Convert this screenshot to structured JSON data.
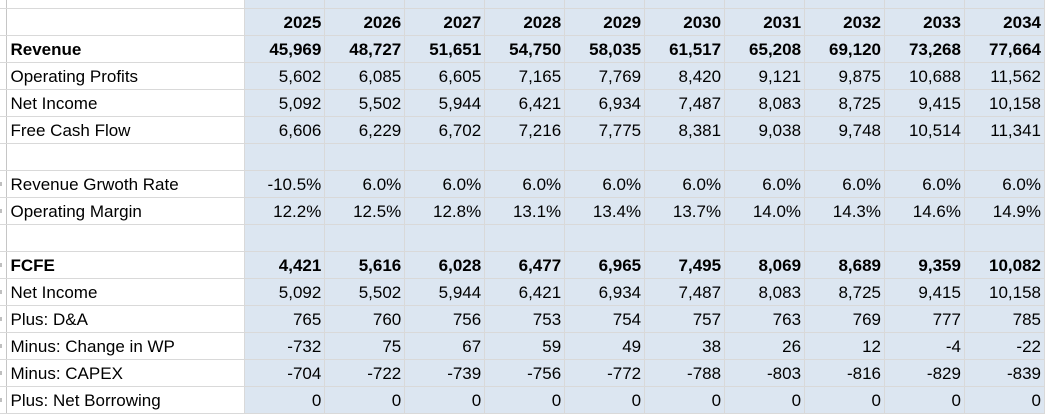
{
  "sheet": {
    "years": [
      "2025",
      "2026",
      "2027",
      "2028",
      "2029",
      "2030",
      "2031",
      "2032",
      "2033",
      "2034"
    ],
    "rows": [
      {
        "label": "",
        "bold": false,
        "values": [],
        "header": true
      },
      {
        "label": "Revenue",
        "bold": true,
        "values": [
          "45,969",
          "48,727",
          "51,651",
          "54,750",
          "58,035",
          "61,517",
          "65,208",
          "69,120",
          "73,268",
          "77,664"
        ]
      },
      {
        "label": "Operating Profits",
        "bold": false,
        "values": [
          "5,602",
          "6,085",
          "6,605",
          "7,165",
          "7,769",
          "8,420",
          "9,121",
          "9,875",
          "10,688",
          "11,562"
        ]
      },
      {
        "label": "Net Income",
        "bold": false,
        "values": [
          "5,092",
          "5,502",
          "5,944",
          "6,421",
          "6,934",
          "7,487",
          "8,083",
          "8,725",
          "9,415",
          "10,158"
        ]
      },
      {
        "label": "Free Cash Flow",
        "bold": false,
        "values": [
          "6,606",
          "6,229",
          "6,702",
          "7,216",
          "7,775",
          "8,381",
          "9,038",
          "9,748",
          "10,514",
          "11,341"
        ]
      },
      {
        "label": "",
        "bold": false,
        "values": []
      },
      {
        "label": "Revenue Grwoth Rate",
        "bold": false,
        "values": [
          "-10.5%",
          "6.0%",
          "6.0%",
          "6.0%",
          "6.0%",
          "6.0%",
          "6.0%",
          "6.0%",
          "6.0%",
          "6.0%"
        ]
      },
      {
        "label": "Operating Margin",
        "bold": false,
        "values": [
          "12.2%",
          "12.5%",
          "12.8%",
          "13.1%",
          "13.4%",
          "13.7%",
          "14.0%",
          "14.3%",
          "14.6%",
          "14.9%"
        ]
      },
      {
        "label": "",
        "bold": false,
        "values": []
      },
      {
        "label": "FCFE",
        "bold": true,
        "values": [
          "4,421",
          "5,616",
          "6,028",
          "6,477",
          "6,965",
          "7,495",
          "8,069",
          "8,689",
          "9,359",
          "10,082"
        ]
      },
      {
        "label": "Net Income",
        "bold": false,
        "values": [
          "5,092",
          "5,502",
          "5,944",
          "6,421",
          "6,934",
          "7,487",
          "8,083",
          "8,725",
          "9,415",
          "10,158"
        ]
      },
      {
        "label": "Plus: D&A",
        "bold": false,
        "values": [
          "765",
          "760",
          "756",
          "753",
          "754",
          "757",
          "763",
          "769",
          "777",
          "785"
        ]
      },
      {
        "label": "Minus: Change in WP",
        "bold": false,
        "values": [
          "-732",
          "75",
          "67",
          "59",
          "49",
          "38",
          "26",
          "12",
          "-4",
          "-22"
        ]
      },
      {
        "label": "Minus: CAPEX",
        "bold": false,
        "values": [
          "-704",
          "-722",
          "-739",
          "-756",
          "-772",
          "-788",
          "-803",
          "-816",
          "-829",
          "-839"
        ]
      },
      {
        "label": "Plus: Net Borrowing",
        "bold": false,
        "values": [
          "0",
          "0",
          "0",
          "0",
          "0",
          "0",
          "0",
          "0",
          "0",
          "0"
        ]
      }
    ]
  },
  "colors": {
    "value_fill": "#dce6f1",
    "gridline": "#d9d9d9"
  }
}
